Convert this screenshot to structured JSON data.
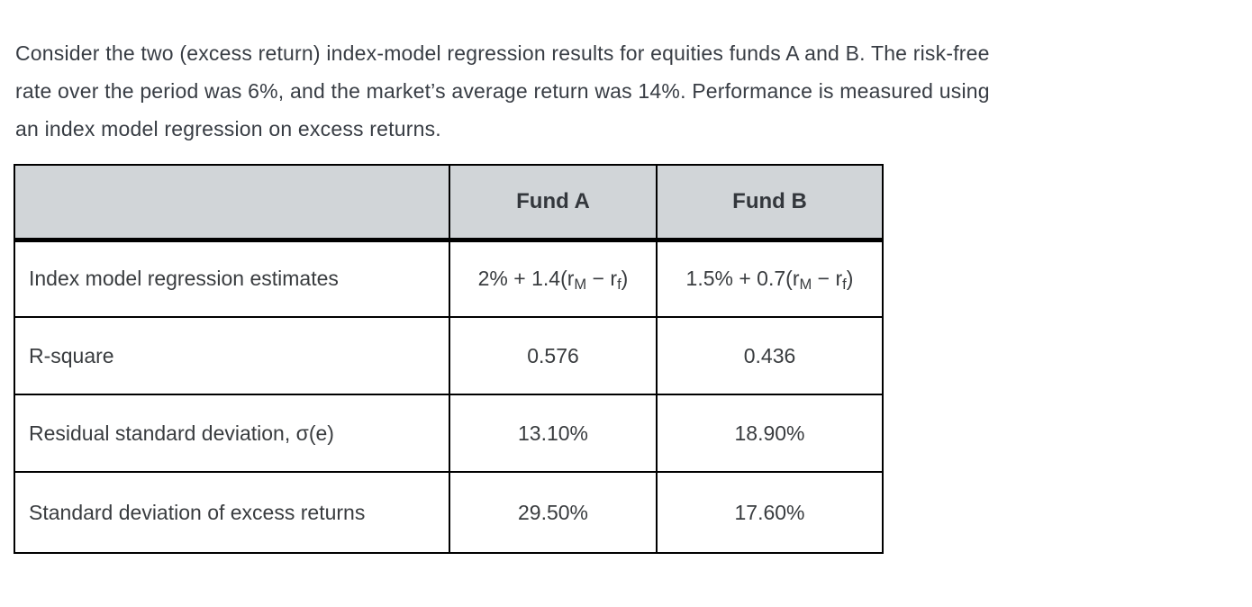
{
  "intro": {
    "lines": [
      "Consider the two (excess return) index-model regression results for equities funds A and B. The risk-free",
      "rate over the period was 6%, and the market’s average return was 14%. Performance is measured using",
      "an index model regression on excess returns."
    ]
  },
  "facts": {
    "risk_free_rate": "6%",
    "market_average_return": "14%"
  },
  "table": {
    "header": {
      "blank": "",
      "fund_a": "Fund A",
      "fund_b": "Fund B"
    },
    "rows": [
      {
        "label": "Index model regression estimates",
        "fund_a_formula": [
          "2% + 1.4(r",
          {
            "sub": "M"
          },
          " − r",
          {
            "sub": "f"
          },
          ")"
        ],
        "fund_b_formula": [
          "1.5% + 0.7(r",
          {
            "sub": "M"
          },
          " − r",
          {
            "sub": "f"
          },
          ")"
        ]
      },
      {
        "label": "R-square",
        "fund_a": "0.576",
        "fund_b": "0.436"
      },
      {
        "label": "Residual standard deviation, σ(e)",
        "fund_a": "13.10%",
        "fund_b": "18.90%"
      },
      {
        "label": "Standard deviation of excess returns",
        "fund_a": "29.50%",
        "fund_b": "17.60%"
      }
    ],
    "colors": {
      "header_background": "#d1d5d8",
      "border": "#000000",
      "text": "#393c3f"
    }
  }
}
